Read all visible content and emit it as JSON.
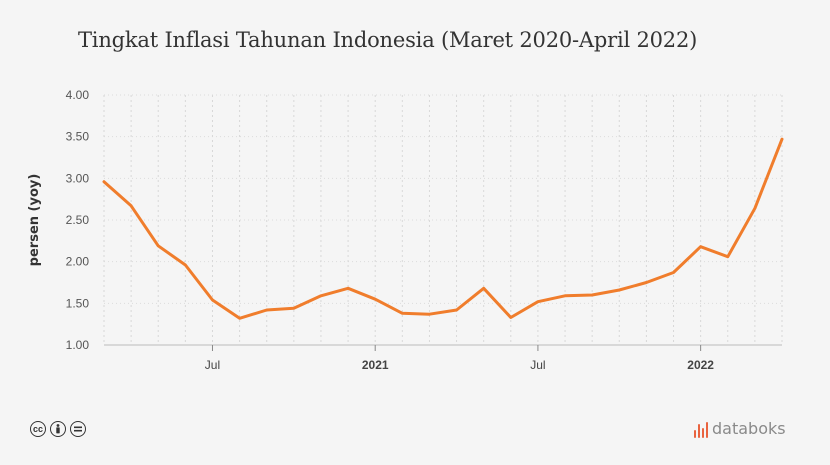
{
  "title": "Tingkat Inflasi Tahunan Indonesia (Maret 2020-April 2022)",
  "brand": "databoks",
  "footer_icons": [
    "cc-icon",
    "attribution-icon",
    "no-derivatives-icon"
  ],
  "chart_data": {
    "type": "line",
    "title": "Tingkat Inflasi Tahunan Indonesia (Maret 2020-April 2022)",
    "ylabel": "persen (yoy)",
    "ylim": [
      1.0,
      4.0
    ],
    "yticks": [
      "1.00",
      "1.50",
      "2.00",
      "2.50",
      "3.00",
      "3.50",
      "4.00"
    ],
    "x": [
      "2020-03",
      "2020-04",
      "2020-05",
      "2020-06",
      "2020-07",
      "2020-08",
      "2020-09",
      "2020-10",
      "2020-11",
      "2020-12",
      "2021-01",
      "2021-02",
      "2021-03",
      "2021-04",
      "2021-05",
      "2021-06",
      "2021-07",
      "2021-08",
      "2021-09",
      "2021-10",
      "2021-11",
      "2021-12",
      "2022-01",
      "2022-02",
      "2022-03",
      "2022-04"
    ],
    "xtick_labels": [
      {
        "x": "2020-07",
        "label": "Jul",
        "bold": false
      },
      {
        "x": "2021-01",
        "label": "2021",
        "bold": true
      },
      {
        "x": "2021-07",
        "label": "Jul",
        "bold": false
      },
      {
        "x": "2022-01",
        "label": "2022",
        "bold": true
      }
    ],
    "series": [
      {
        "color": "#f07d2c",
        "values": [
          2.96,
          2.67,
          2.19,
          1.96,
          1.54,
          1.32,
          1.42,
          1.44,
          1.59,
          1.68,
          1.55,
          1.38,
          1.37,
          1.42,
          1.68,
          1.33,
          1.52,
          1.59,
          1.6,
          1.66,
          1.75,
          1.87,
          2.18,
          2.06,
          2.64,
          3.47
        ]
      }
    ],
    "grid": true
  }
}
